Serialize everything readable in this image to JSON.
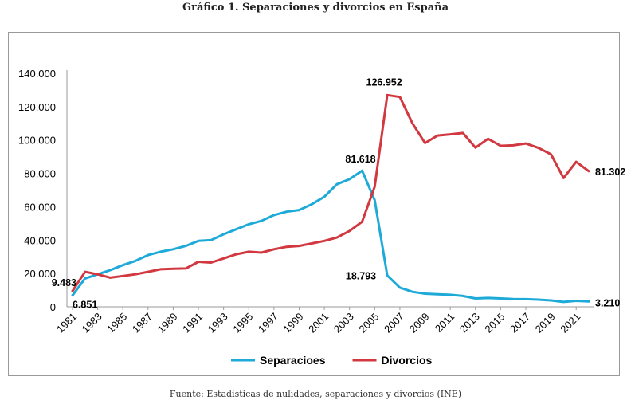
{
  "header": {
    "title": "Gráfico 1. Separaciones y divorcios en España"
  },
  "footer": {
    "source": "Fuente: Estadísticas de nulidades, separaciones y divorcios (INE)"
  },
  "chart_data": {
    "type": "line",
    "title": "Gráfico 1. Separaciones y divorcios en España",
    "xlabel": "",
    "ylabel": "",
    "ylim": [
      0,
      140000
    ],
    "yticks": [
      0,
      20000,
      40000,
      60000,
      80000,
      100000,
      120000,
      140000
    ],
    "ytick_labels": [
      "0",
      "20.000",
      "40.000",
      "60.000",
      "80.000",
      "100.000",
      "120.000",
      "140.000"
    ],
    "x": [
      1981,
      1982,
      1983,
      1984,
      1985,
      1986,
      1987,
      1988,
      1989,
      1990,
      1991,
      1992,
      1993,
      1994,
      1995,
      1996,
      1997,
      1998,
      1999,
      2000,
      2001,
      2002,
      2003,
      2004,
      2005,
      2006,
      2007,
      2008,
      2009,
      2010,
      2011,
      2012,
      2013,
      2014,
      2015,
      2016,
      2017,
      2018,
      2019,
      2020,
      2021,
      2022
    ],
    "xtick_labels": [
      "1981",
      "1983",
      "1985",
      "1987",
      "1989",
      "1991",
      "1993",
      "1995",
      "1997",
      "1999",
      "2001",
      "2003",
      "2005",
      "2007",
      "2009",
      "2011",
      "2013",
      "2015",
      "2017",
      "2019",
      "2021"
    ],
    "grid": false,
    "legend_position": "bottom",
    "series": [
      {
        "name": "Separacioes",
        "color": "#1eaad8",
        "values": [
          6851,
          17000,
          19500,
          22000,
          25000,
          27500,
          31000,
          33000,
          34500,
          36500,
          39500,
          40000,
          43500,
          46500,
          49500,
          51500,
          55000,
          57000,
          58000,
          61500,
          66000,
          73500,
          76500,
          81618,
          64000,
          18793,
          11500,
          9000,
          7900,
          7500,
          7200,
          6500,
          5000,
          5300,
          5000,
          4700,
          4600,
          4300,
          3800,
          2900,
          3600,
          3210
        ]
      },
      {
        "name": "Divorcios",
        "color": "#d1383f",
        "values": [
          9483,
          21000,
          19500,
          17500,
          18500,
          19500,
          21000,
          22500,
          22800,
          23000,
          27000,
          26500,
          29000,
          31500,
          33000,
          32500,
          34500,
          36000,
          36500,
          38000,
          39500,
          41500,
          45500,
          51000,
          72000,
          126952,
          125800,
          110000,
          98200,
          102700,
          103400,
          104200,
          95400,
          100700,
          96500,
          96800,
          97900,
          95300,
          91400,
          77200,
          86900,
          81302
        ]
      }
    ],
    "annotations": [
      {
        "text": "6.851",
        "series": "Separacioes",
        "x": 1981
      },
      {
        "text": "9.483",
        "series": "Divorcios",
        "x": 1981
      },
      {
        "text": "81.618",
        "series": "Separacioes",
        "x": 2004
      },
      {
        "text": "18.793",
        "series": "Separacioes",
        "x": 2006
      },
      {
        "text": "126.952",
        "series": "Divorcios",
        "x": 2006
      },
      {
        "text": "81.302",
        "series": "Divorcios",
        "x": 2022
      },
      {
        "text": "3.210",
        "series": "Separacioes",
        "x": 2022
      }
    ]
  }
}
